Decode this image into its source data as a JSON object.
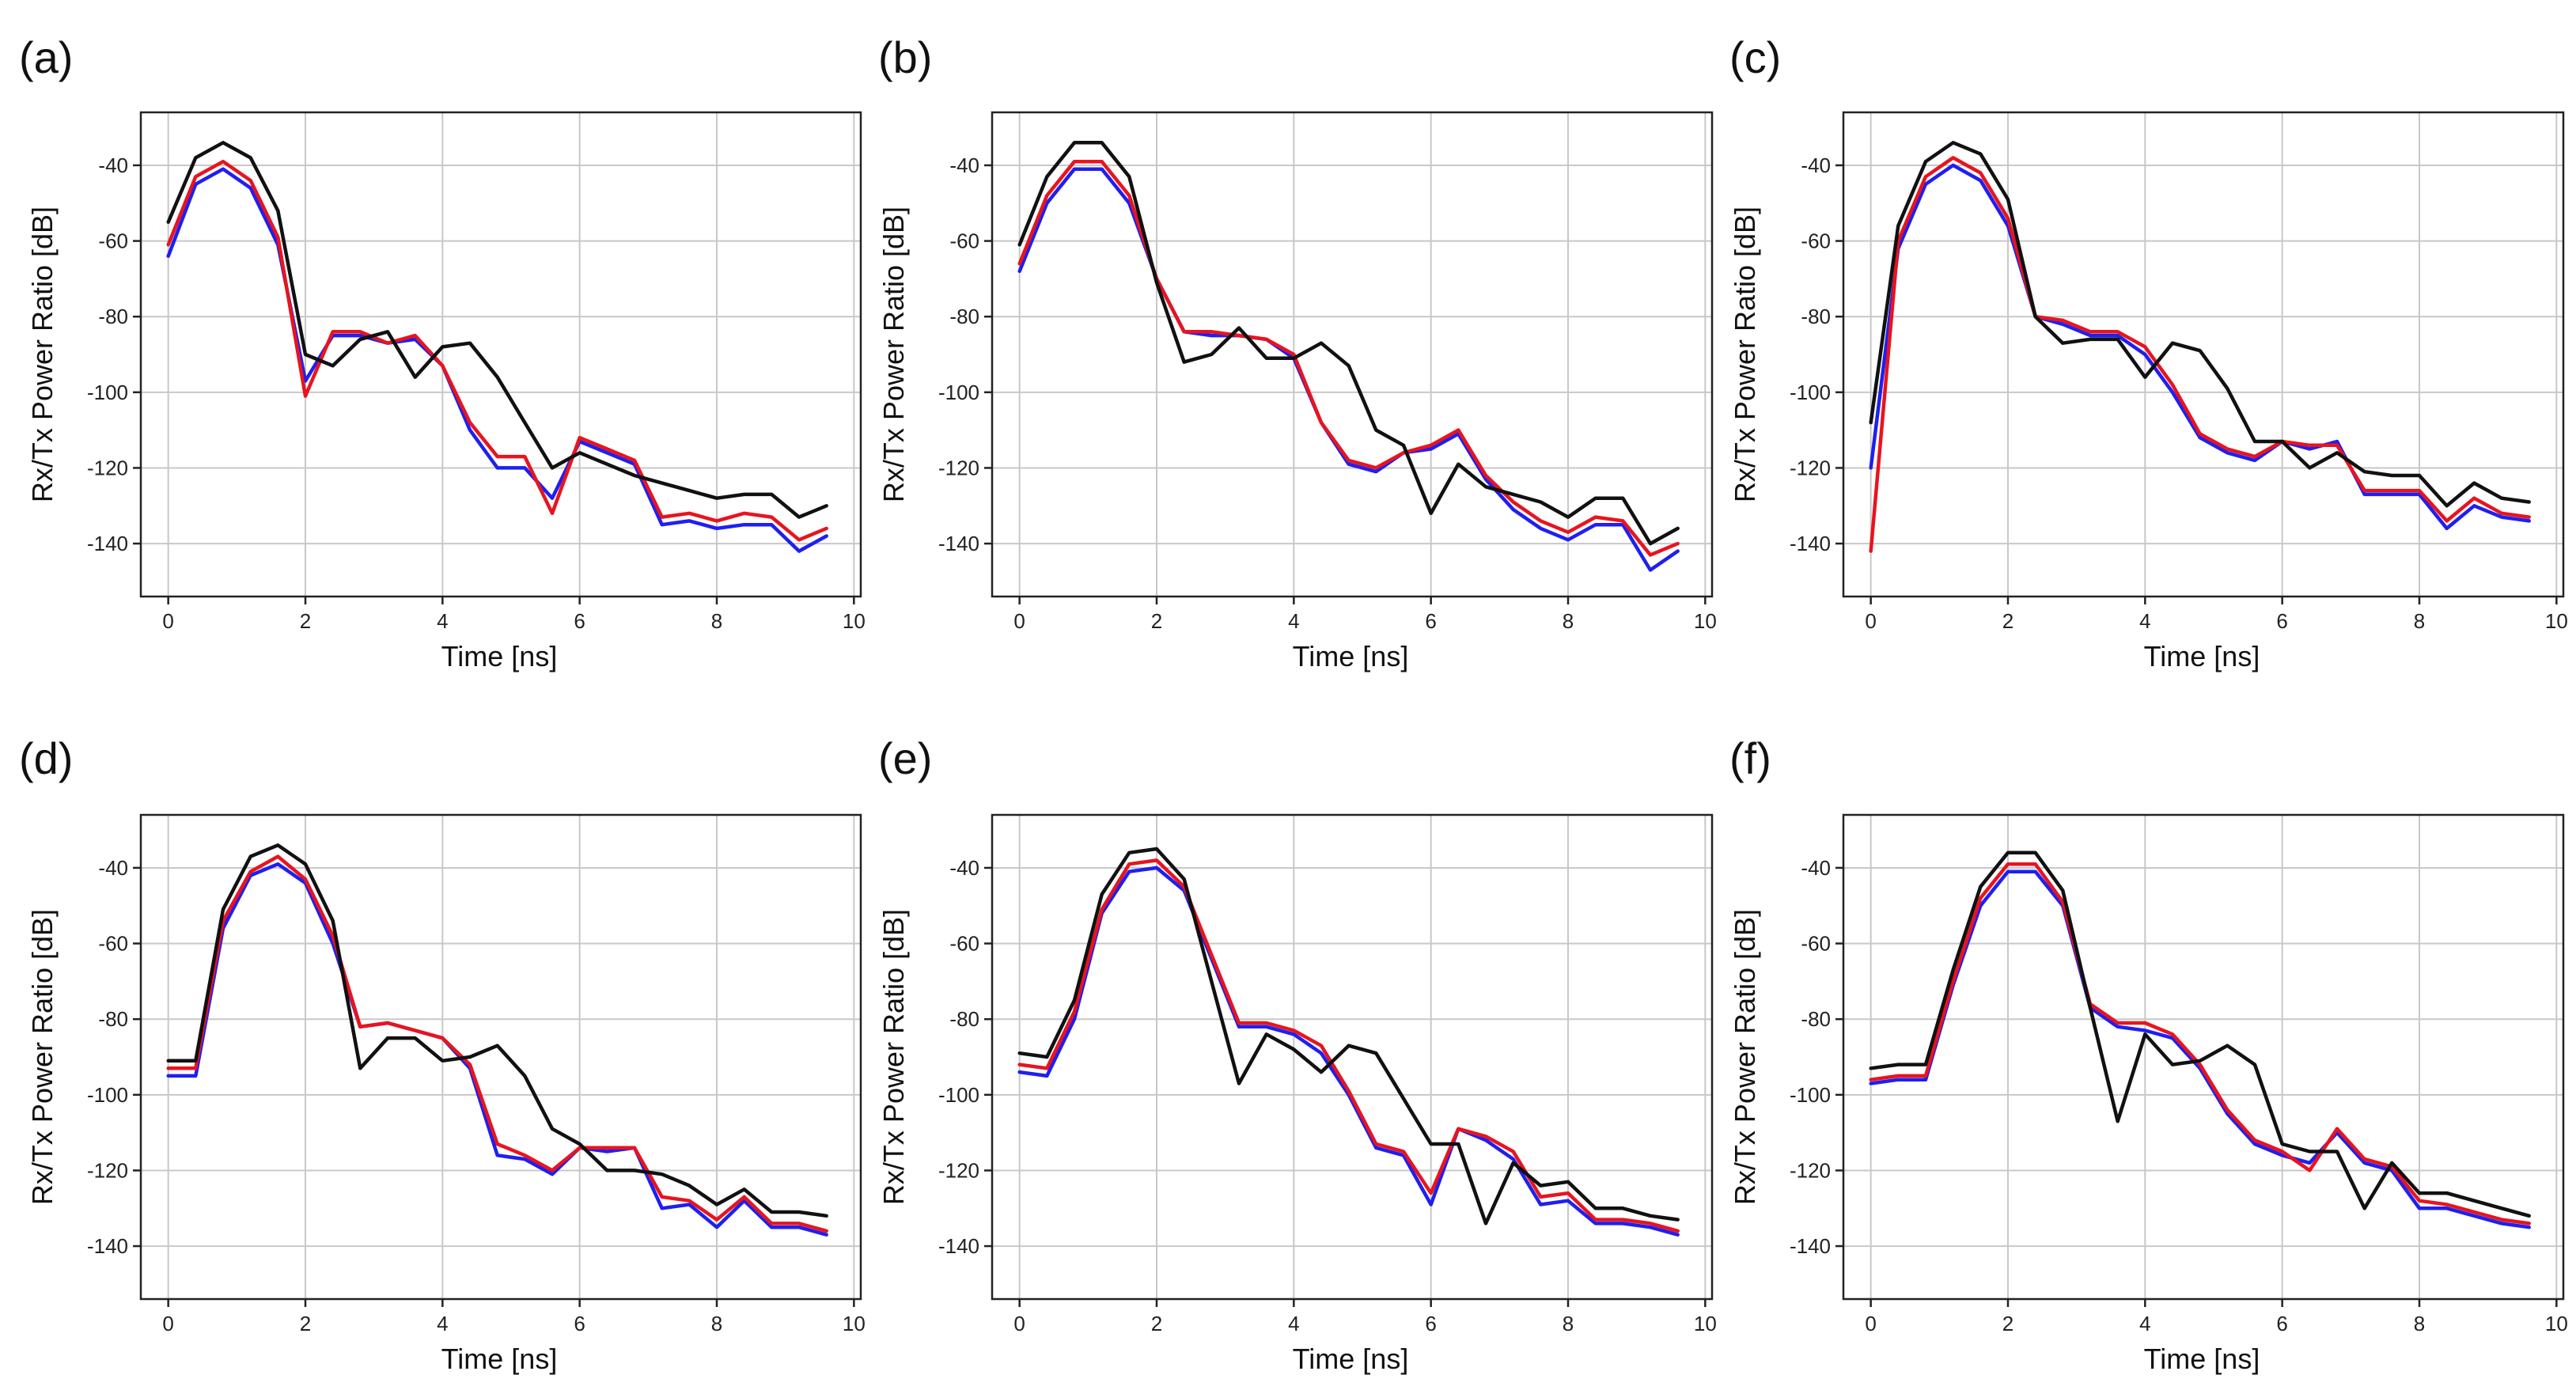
{
  "colors": {
    "blue": "#1f1ff0",
    "red": "#e8141e",
    "black": "#111111"
  },
  "chart_data": [
    {
      "type": "line",
      "panel": "(a)",
      "xlabel": "Time [ns]",
      "ylabel": "Rx/Tx Power Ratio [dB]",
      "xlim": [
        -0.4,
        10.1
      ],
      "ylim": [
        -154,
        -26
      ],
      "xticks": [
        0,
        2,
        4,
        6,
        8,
        10
      ],
      "yticks": [
        -140,
        -120,
        -100,
        -80,
        -60,
        -40
      ],
      "grid": true,
      "x": [
        0,
        0.4,
        0.8,
        1.2,
        1.6,
        2.0,
        2.4,
        2.8,
        3.2,
        3.6,
        4.0,
        4.4,
        4.8,
        5.2,
        5.6,
        6.0,
        6.4,
        6.8,
        7.2,
        7.6,
        8.0,
        8.4,
        8.8,
        9.2,
        9.6
      ],
      "series": [
        {
          "name": "blue",
          "color": "#1f1ff0",
          "values": [
            -64,
            -45,
            -41,
            -46,
            -61,
            -97,
            -85,
            -85,
            -87,
            -86,
            -93,
            -110,
            -120,
            -120,
            -128,
            -113,
            -116,
            -119,
            -135,
            -134,
            -136,
            -135,
            -135,
            -142,
            -138
          ]
        },
        {
          "name": "red",
          "color": "#e8141e",
          "values": [
            -61,
            -43,
            -39,
            -44,
            -59,
            -101,
            -84,
            -84,
            -87,
            -85,
            -93,
            -108,
            -117,
            -117,
            -132,
            -112,
            -115,
            -118,
            -133,
            -132,
            -134,
            -132,
            -133,
            -139,
            -136
          ]
        },
        {
          "name": "black",
          "color": "#111111",
          "values": [
            -55,
            -38,
            -34,
            -38,
            -52,
            -90,
            -93,
            -86,
            -84,
            -96,
            -88,
            -87,
            -96,
            -108,
            -120,
            -116,
            -119,
            -122,
            -124,
            -126,
            -128,
            -127,
            -127,
            -133,
            -130
          ]
        }
      ]
    },
    {
      "type": "line",
      "panel": "(b)",
      "xlabel": "Time [ns]",
      "ylabel": "Rx/Tx Power Ratio [dB]",
      "xlim": [
        -0.4,
        10.1
      ],
      "ylim": [
        -154,
        -26
      ],
      "xticks": [
        0,
        2,
        4,
        6,
        8,
        10
      ],
      "yticks": [
        -140,
        -120,
        -100,
        -80,
        -60,
        -40
      ],
      "grid": true,
      "x": [
        0,
        0.4,
        0.8,
        1.2,
        1.6,
        2.0,
        2.4,
        2.8,
        3.2,
        3.6,
        4.0,
        4.4,
        4.8,
        5.2,
        5.6,
        6.0,
        6.4,
        6.8,
        7.2,
        7.6,
        8.0,
        8.4,
        8.8,
        9.2,
        9.6
      ],
      "series": [
        {
          "name": "blue",
          "color": "#1f1ff0",
          "values": [
            -68,
            -50,
            -41,
            -41,
            -50,
            -70,
            -84,
            -85,
            -85,
            -86,
            -91,
            -108,
            -119,
            -121,
            -116,
            -115,
            -111,
            -123,
            -131,
            -136,
            -139,
            -135,
            -135,
            -147,
            -142
          ]
        },
        {
          "name": "red",
          "color": "#e8141e",
          "values": [
            -66,
            -48,
            -39,
            -39,
            -48,
            -70,
            -84,
            -84,
            -85,
            -86,
            -90,
            -108,
            -118,
            -120,
            -116,
            -114,
            -110,
            -122,
            -129,
            -134,
            -137,
            -133,
            -134,
            -143,
            -140
          ]
        },
        {
          "name": "black",
          "color": "#111111",
          "values": [
            -61,
            -43,
            -34,
            -34,
            -43,
            -71,
            -92,
            -90,
            -83,
            -91,
            -91,
            -87,
            -93,
            -110,
            -114,
            -132,
            -119,
            -125,
            -127,
            -129,
            -133,
            -128,
            -128,
            -140,
            -136
          ]
        }
      ]
    },
    {
      "type": "line",
      "panel": "(c)",
      "xlabel": "Time [ns]",
      "ylabel": "Rx/Tx Power Ratio [dB]",
      "xlim": [
        -0.4,
        10.1
      ],
      "ylim": [
        -154,
        -26
      ],
      "xticks": [
        0,
        2,
        4,
        6,
        8,
        10
      ],
      "yticks": [
        -140,
        -120,
        -100,
        -80,
        -60,
        -40
      ],
      "grid": true,
      "x": [
        0,
        0.4,
        0.8,
        1.2,
        1.6,
        2.0,
        2.4,
        2.8,
        3.2,
        3.6,
        4.0,
        4.4,
        4.8,
        5.2,
        5.6,
        6.0,
        6.4,
        6.8,
        7.2,
        7.6,
        8.0,
        8.4,
        8.8,
        9.2,
        9.6
      ],
      "series": [
        {
          "name": "blue",
          "color": "#1f1ff0",
          "values": [
            -120,
            -62,
            -45,
            -40,
            -44,
            -56,
            -80,
            -82,
            -85,
            -85,
            -90,
            -100,
            -112,
            -116,
            -118,
            -113,
            -115,
            -113,
            -127,
            -127,
            -127,
            -136,
            -130,
            -133,
            -134
          ]
        },
        {
          "name": "red",
          "color": "#e8141e",
          "values": [
            -142,
            -60,
            -43,
            -38,
            -42,
            -54,
            -80,
            -81,
            -84,
            -84,
            -88,
            -98,
            -111,
            -115,
            -117,
            -113,
            -114,
            -114,
            -126,
            -126,
            -126,
            -134,
            -128,
            -132,
            -133
          ]
        },
        {
          "name": "black",
          "color": "#111111",
          "values": [
            -108,
            -56,
            -39,
            -34,
            -37,
            -49,
            -80,
            -87,
            -86,
            -86,
            -96,
            -87,
            -89,
            -99,
            -113,
            -113,
            -120,
            -116,
            -121,
            -122,
            -122,
            -130,
            -124,
            -128,
            -129
          ]
        }
      ]
    },
    {
      "type": "line",
      "panel": "(d)",
      "xlabel": "Time [ns]",
      "ylabel": "Rx/Tx Power Ratio [dB]",
      "xlim": [
        -0.4,
        10.1
      ],
      "ylim": [
        -154,
        -26
      ],
      "xticks": [
        0,
        2,
        4,
        6,
        8,
        10
      ],
      "yticks": [
        -140,
        -120,
        -100,
        -80,
        -60,
        -40
      ],
      "grid": true,
      "x": [
        0,
        0.4,
        0.8,
        1.2,
        1.6,
        2.0,
        2.4,
        2.8,
        3.2,
        3.6,
        4.0,
        4.4,
        4.8,
        5.2,
        5.6,
        6.0,
        6.4,
        6.8,
        7.2,
        7.6,
        8.0,
        8.4,
        8.8,
        9.2,
        9.6
      ],
      "series": [
        {
          "name": "blue",
          "color": "#1f1ff0",
          "values": [
            -95,
            -95,
            -56,
            -42,
            -39,
            -44,
            -60,
            -82,
            -81,
            -83,
            -85,
            -93,
            -116,
            -117,
            -121,
            -114,
            -115,
            -114,
            -130,
            -129,
            -135,
            -128,
            -135,
            -135,
            -137
          ]
        },
        {
          "name": "red",
          "color": "#e8141e",
          "values": [
            -93,
            -93,
            -54,
            -41,
            -37,
            -43,
            -58,
            -82,
            -81,
            -83,
            -85,
            -92,
            -113,
            -116,
            -120,
            -114,
            -114,
            -114,
            -127,
            -128,
            -133,
            -127,
            -134,
            -134,
            -136
          ]
        },
        {
          "name": "black",
          "color": "#111111",
          "values": [
            -91,
            -91,
            -51,
            -37,
            -34,
            -39,
            -54,
            -93,
            -85,
            -85,
            -91,
            -90,
            -87,
            -95,
            -109,
            -113,
            -120,
            -120,
            -121,
            -124,
            -129,
            -125,
            -131,
            -131,
            -132
          ]
        }
      ]
    },
    {
      "type": "line",
      "panel": "(e)",
      "xlabel": "Time [ns]",
      "ylabel": "Rx/Tx Power Ratio [dB]",
      "xlim": [
        -0.4,
        10.1
      ],
      "ylim": [
        -154,
        -26
      ],
      "xticks": [
        0,
        2,
        4,
        6,
        8,
        10
      ],
      "yticks": [
        -140,
        -120,
        -100,
        -80,
        -60,
        -40
      ],
      "grid": true,
      "x": [
        0,
        0.4,
        0.8,
        1.2,
        1.6,
        2.0,
        2.4,
        2.8,
        3.2,
        3.6,
        4.0,
        4.4,
        4.8,
        5.2,
        5.6,
        6.0,
        6.4,
        6.8,
        7.2,
        7.6,
        8.0,
        8.4,
        8.8,
        9.2,
        9.6
      ],
      "series": [
        {
          "name": "blue",
          "color": "#1f1ff0",
          "values": [
            -94,
            -95,
            -80,
            -52,
            -41,
            -40,
            -46,
            -64,
            -82,
            -82,
            -84,
            -89,
            -100,
            -114,
            -116,
            -129,
            -109,
            -112,
            -117,
            -129,
            -128,
            -134,
            -134,
            -135,
            -137
          ]
        },
        {
          "name": "red",
          "color": "#e8141e",
          "values": [
            -92,
            -93,
            -78,
            -51,
            -39,
            -38,
            -45,
            -63,
            -81,
            -81,
            -83,
            -87,
            -99,
            -113,
            -115,
            -126,
            -109,
            -111,
            -115,
            -127,
            -126,
            -133,
            -133,
            -134,
            -136
          ]
        },
        {
          "name": "black",
          "color": "#111111",
          "values": [
            -89,
            -90,
            -75,
            -47,
            -36,
            -35,
            -43,
            -70,
            -97,
            -84,
            -88,
            -94,
            -87,
            -89,
            -101,
            -113,
            -113,
            -134,
            -118,
            -124,
            -123,
            -130,
            -130,
            -132,
            -133
          ]
        }
      ]
    },
    {
      "type": "line",
      "panel": "(f)",
      "xlabel": "Time [ns]",
      "ylabel": "Rx/Tx Power Ratio [dB]",
      "xlim": [
        -0.4,
        10.1
      ],
      "ylim": [
        -154,
        -26
      ],
      "xticks": [
        0,
        2,
        4,
        6,
        8,
        10
      ],
      "yticks": [
        -140,
        -120,
        -100,
        -80,
        -60,
        -40
      ],
      "grid": true,
      "x": [
        0,
        0.4,
        0.8,
        1.2,
        1.6,
        2.0,
        2.4,
        2.8,
        3.2,
        3.6,
        4.0,
        4.4,
        4.8,
        5.2,
        5.6,
        6.0,
        6.4,
        6.8,
        7.2,
        7.6,
        8.0,
        8.4,
        8.8,
        9.2,
        9.6
      ],
      "series": [
        {
          "name": "blue",
          "color": "#1f1ff0",
          "values": [
            -97,
            -96,
            -96,
            -71,
            -50,
            -41,
            -41,
            -50,
            -77,
            -82,
            -83,
            -85,
            -93,
            -105,
            -113,
            -116,
            -118,
            -110,
            -118,
            -120,
            -130,
            -130,
            -132,
            -134,
            -135
          ]
        },
        {
          "name": "red",
          "color": "#e8141e",
          "values": [
            -96,
            -95,
            -95,
            -70,
            -48,
            -39,
            -39,
            -49,
            -76,
            -81,
            -81,
            -84,
            -92,
            -104,
            -112,
            -115,
            -120,
            -109,
            -117,
            -119,
            -128,
            -129,
            -131,
            -133,
            -134
          ]
        },
        {
          "name": "black",
          "color": "#111111",
          "values": [
            -93,
            -92,
            -92,
            -67,
            -45,
            -36,
            -36,
            -46,
            -77,
            -107,
            -84,
            -92,
            -91,
            -87,
            -92,
            -113,
            -115,
            -115,
            -130,
            -118,
            -126,
            -126,
            -128,
            -130,
            -132
          ]
        }
      ]
    }
  ]
}
